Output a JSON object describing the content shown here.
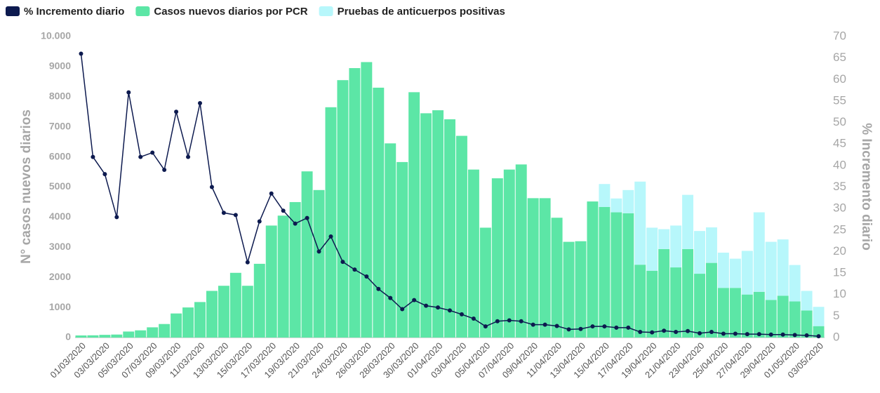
{
  "chart_data": {
    "type": "bar",
    "stacked": true,
    "grid": false,
    "y_label": "N° casos nuevos diarios",
    "y2_label": "% Incremento diario",
    "categories": [
      "01/03/2020",
      null,
      "03/03/2020",
      null,
      "05/03/2020",
      null,
      "07/03/2020",
      null,
      "09/03/2020",
      null,
      "11/03/2020",
      null,
      "13/03/2020",
      null,
      "15/03/2020",
      null,
      "17/03/2020",
      null,
      "19/03/2020",
      null,
      "21/03/2020",
      null,
      "24/03/2020",
      null,
      "26/03/2020",
      null,
      "28/03/2020",
      null,
      "30/03/2020",
      null,
      "01/04/2020",
      null,
      "03/04/2020",
      null,
      "05/04/2020",
      null,
      "07/04/2020",
      null,
      "09/04/2020",
      null,
      "11/04/2020",
      null,
      "13/04/2020",
      null,
      "15/04/2020",
      null,
      "17/04/2020",
      null,
      "19/04/2020",
      null,
      "21/04/2020",
      null,
      "23/04/2020",
      null,
      "25/04/2020",
      null,
      "27/04/2020",
      null,
      "29/04/2020",
      null,
      "01/05/2020",
      null,
      "03/05/2020"
    ],
    "series": [
      {
        "name": "% Incremento diario",
        "type": "line",
        "axis": "y2",
        "color": "#0d1a4f",
        "values": [
          66,
          42,
          38,
          28,
          57,
          42,
          43,
          39,
          52.5,
          42,
          54.5,
          35,
          29,
          28.5,
          17.5,
          27,
          33.5,
          29.5,
          26.5,
          27.8,
          20,
          23.5,
          17.6,
          15.8,
          14.2,
          11.3,
          9.2,
          6.6,
          8.7,
          7.4,
          7,
          6.3,
          5.4,
          4.4,
          2.6,
          3.8,
          4,
          3.8,
          3,
          3,
          2.7,
          1.9,
          2,
          2.6,
          2.6,
          2.3,
          2.3,
          1.3,
          1.2,
          1.6,
          1.3,
          1.5,
          1,
          1.3,
          0.9,
          0.9,
          0.8,
          0.8,
          0.7,
          0.7,
          0.6,
          0.5,
          0.3
        ]
      },
      {
        "name": "Casos nuevos diarios por PCR",
        "type": "bar",
        "color": "#5ce6a6",
        "values": [
          70,
          75,
          90,
          100,
          200,
          240,
          340,
          450,
          800,
          1000,
          1180,
          1550,
          1720,
          2150,
          1720,
          2450,
          3720,
          4050,
          4500,
          5520,
          4900,
          7650,
          8550,
          8950,
          9150,
          8300,
          6450,
          5830,
          8150,
          7450,
          7550,
          7250,
          6700,
          5580,
          3650,
          5290,
          5580,
          5750,
          4630,
          4630,
          3980,
          3180,
          3200,
          4520,
          4340,
          4160,
          4130,
          2420,
          2220,
          2940,
          2330,
          2940,
          2120,
          2480,
          1650,
          1650,
          1430,
          1520,
          1250,
          1390,
          1200,
          900,
          380
        ]
      },
      {
        "name": "Pruebas de anticuerpos positivas",
        "type": "bar",
        "color": "#b7f7fb",
        "values": [
          null,
          null,
          null,
          null,
          null,
          null,
          null,
          null,
          null,
          null,
          null,
          null,
          null,
          null,
          null,
          null,
          null,
          null,
          null,
          null,
          null,
          null,
          null,
          null,
          null,
          null,
          null,
          null,
          null,
          null,
          null,
          null,
          null,
          null,
          null,
          null,
          null,
          null,
          null,
          null,
          null,
          null,
          null,
          null,
          760,
          460,
          770,
          2760,
          1430,
          660,
          1390,
          1800,
          1420,
          1180,
          1170,
          970,
          1450,
          2640,
          1930,
          1870,
          1210,
          650,
          640
        ]
      }
    ],
    "ylim": [
      0,
      10000
    ],
    "yticks": [
      0,
      1000,
      2000,
      3000,
      4000,
      5000,
      6000,
      7000,
      8000,
      9000,
      {
        "value": 10000,
        "label": "10.000"
      }
    ],
    "y2lim": [
      0,
      70
    ],
    "y2ticks": [
      0,
      5,
      10,
      15,
      20,
      25,
      30,
      35,
      40,
      45,
      50,
      55,
      60,
      65,
      70
    ]
  }
}
